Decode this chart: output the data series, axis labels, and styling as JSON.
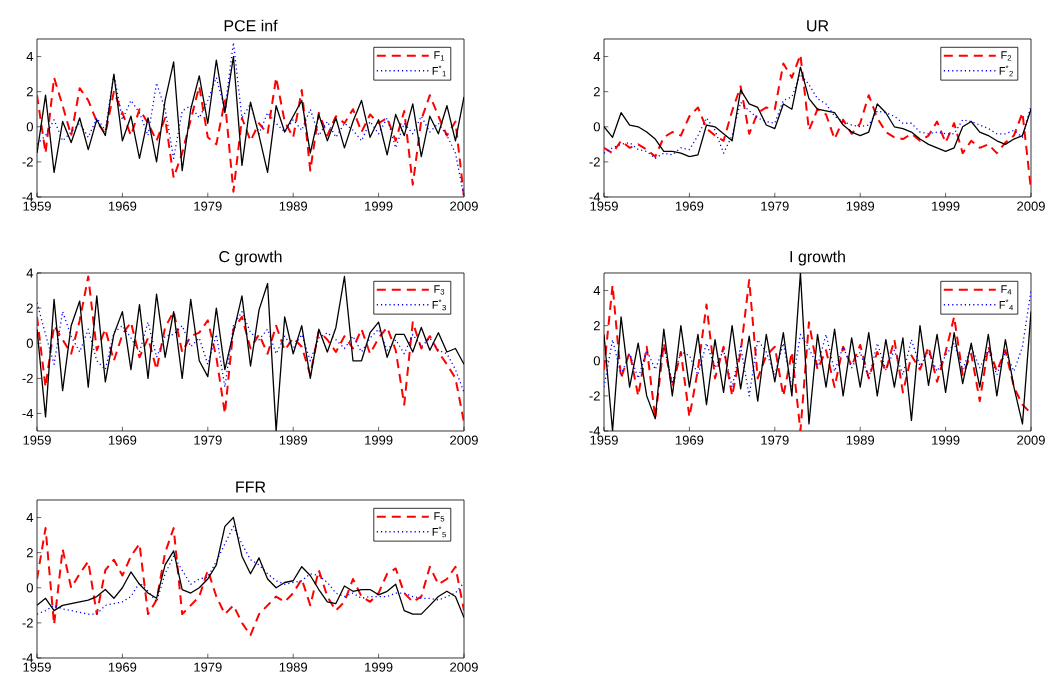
{
  "chart_data": [
    {
      "type": "line",
      "title": "PCE inf",
      "x": [
        1959,
        1960,
        1961,
        1962,
        1963,
        1964,
        1965,
        1966,
        1967,
        1968,
        1969,
        1970,
        1971,
        1972,
        1973,
        1974,
        1975,
        1976,
        1977,
        1978,
        1979,
        1980,
        1981,
        1982,
        1983,
        1984,
        1985,
        1986,
        1987,
        1988,
        1989,
        1990,
        1991,
        1992,
        1993,
        1994,
        1995,
        1996,
        1997,
        1998,
        1999,
        2000,
        2001,
        2002,
        2003,
        2004,
        2005,
        2006,
        2007,
        2008,
        2009
      ],
      "xlim": [
        1959,
        2009
      ],
      "xticks": [
        1959,
        1969,
        1979,
        1989,
        1999,
        2009
      ],
      "ylim": [
        -4,
        5
      ],
      "yticks": [
        -4,
        -2,
        0,
        2,
        4
      ],
      "legend": "top right",
      "series": [
        {
          "name": "F$_{1}$",
          "color": "#ff0000",
          "line_style": "dashed",
          "values": [
            1.8,
            -1.5,
            2.8,
            1.2,
            -0.5,
            2.2,
            1.5,
            0.3,
            -0.4,
            2.0,
            0.8,
            -0.5,
            1.0,
            0.2,
            -0.8,
            0.5,
            -2.9,
            -1.5,
            0.4,
            2.3,
            -0.6,
            -1.0,
            1.5,
            -3.7,
            0.5,
            -0.8,
            0.2,
            -0.4,
            2.8,
            0.3,
            -0.6,
            2.1,
            -2.5,
            0.8,
            -0.5,
            0.6,
            0.2,
            1.0,
            -0.3,
            0.7,
            0.2,
            0.5,
            -0.8,
            0.9,
            -3.3,
            0.4,
            1.8,
            0.6,
            -0.5,
            0.3,
            -4.0
          ]
        },
        {
          "name": "F$^{*}$$_{1}$",
          "color": "#0000ff",
          "line_style": "dotted",
          "values": [
            -1.0,
            -0.5,
            0.4,
            -0.8,
            -0.3,
            0.2,
            -0.6,
            0.5,
            -0.2,
            3.0,
            0.4,
            1.5,
            0.8,
            -0.5,
            2.5,
            1.0,
            -1.8,
            0.9,
            1.2,
            0.5,
            1.5,
            2.8,
            1.0,
            4.8,
            0.5,
            1.3,
            -0.4,
            0.8,
            0.2,
            -0.3,
            0.4,
            -0.2,
            1.0,
            -0.5,
            0.3,
            -0.6,
            0.2,
            -0.2,
            -0.8,
            0.3,
            -0.4,
            0.5,
            -1.2,
            0.2,
            -0.4,
            0.6,
            -0.3,
            0.2,
            -0.5,
            -1.5,
            -4.0
          ]
        },
        {
          "color": "#000000",
          "line_style": "solid",
          "values": [
            -1.5,
            1.8,
            -2.6,
            0.3,
            -0.9,
            0.5,
            -1.3,
            0.4,
            -0.5,
            3.0,
            -0.8,
            0.6,
            -1.8,
            0.5,
            -2.0,
            1.5,
            3.7,
            -2.5,
            1.0,
            2.9,
            0.2,
            3.8,
            0.8,
            4.0,
            -2.2,
            1.4,
            -0.5,
            -2.6,
            1.2,
            -0.3,
            0.6,
            1.5,
            -1.5,
            0.7,
            -0.8,
            0.5,
            -1.2,
            0.3,
            1.5,
            -0.6,
            0.4,
            -1.6,
            0.7,
            -0.5,
            1.3,
            -1.7,
            0.6,
            -0.4,
            1.2,
            -0.8,
            1.7
          ]
        }
      ]
    },
    {
      "type": "line",
      "title": "UR",
      "x": [
        1959,
        1960,
        1961,
        1962,
        1963,
        1964,
        1965,
        1966,
        1967,
        1968,
        1969,
        1970,
        1971,
        1972,
        1973,
        1974,
        1975,
        1976,
        1977,
        1978,
        1979,
        1980,
        1981,
        1982,
        1983,
        1984,
        1985,
        1986,
        1987,
        1988,
        1989,
        1990,
        1991,
        1992,
        1993,
        1994,
        1995,
        1996,
        1997,
        1998,
        1999,
        2000,
        2001,
        2002,
        2003,
        2004,
        2005,
        2006,
        2007,
        2008,
        2009
      ],
      "xlim": [
        1959,
        2009
      ],
      "xticks": [
        1959,
        1969,
        1979,
        1989,
        1999,
        2009
      ],
      "ylim": [
        -4,
        5
      ],
      "yticks": [
        -4,
        -2,
        0,
        2,
        4
      ],
      "legend": "top right",
      "series": [
        {
          "name": "F$_{2}$",
          "color": "#ff0000",
          "line_style": "dashed",
          "values": [
            -1.2,
            -1.5,
            -0.8,
            -1.2,
            -1.0,
            -1.3,
            -1.7,
            -0.6,
            -0.3,
            -0.5,
            0.6,
            1.1,
            -0.1,
            -0.5,
            -0.8,
            0.9,
            2.3,
            -0.4,
            0.8,
            1.1,
            1.0,
            3.6,
            2.8,
            4.1,
            -0.2,
            1.0,
            0.7,
            -0.7,
            0.4,
            -0.4,
            0.2,
            1.8,
            0.5,
            -0.3,
            -0.6,
            -0.7,
            -0.4,
            -0.8,
            -0.5,
            0.3,
            -0.9,
            0.2,
            -1.5,
            -0.8,
            -1.2,
            -1.0,
            -1.5,
            -0.9,
            -0.5,
            0.8,
            -3.6
          ]
        },
        {
          "name": "F$^{*}$$_{2}$",
          "color": "#0000ff",
          "line_style": "dotted",
          "values": [
            -1.5,
            -1.2,
            -1.0,
            -0.9,
            -1.3,
            -1.4,
            -1.8,
            -1.5,
            -1.6,
            -1.2,
            -1.3,
            -0.5,
            0.5,
            -0.2,
            -1.5,
            -0.5,
            1.4,
            0.9,
            0.5,
            0.3,
            0.2,
            1.5,
            1.7,
            3.0,
            2.4,
            1.6,
            1.3,
            0.6,
            0.3,
            0.1,
            0.0,
            0.1,
            0.9,
            0.8,
            0.6,
            0.2,
            0.2,
            -0.3,
            -0.4,
            -0.3,
            -0.4,
            -0.4,
            0.4,
            0.3,
            0.1,
            -0.1,
            -0.4,
            -0.4,
            -0.2,
            -0.6,
            1.2
          ]
        },
        {
          "color": "#000000",
          "line_style": "solid",
          "values": [
            0.0,
            -0.6,
            0.8,
            0.1,
            0.0,
            -0.3,
            -0.7,
            -1.4,
            -1.4,
            -1.5,
            -1.7,
            -1.6,
            0.1,
            0.0,
            -0.4,
            -0.8,
            2.1,
            1.3,
            1.1,
            0.1,
            -0.1,
            1.3,
            1.0,
            3.4,
            1.6,
            1.0,
            0.9,
            0.8,
            0.1,
            -0.3,
            -0.5,
            -0.3,
            1.3,
            0.8,
            0.0,
            -0.1,
            -0.3,
            -0.7,
            -1.0,
            -1.2,
            -1.4,
            -1.2,
            0.0,
            0.3,
            -0.3,
            -0.5,
            -0.8,
            -1.0,
            -0.7,
            -0.5,
            1.0
          ]
        }
      ]
    },
    {
      "type": "line",
      "title": "C growth",
      "x": [
        1959,
        1960,
        1961,
        1962,
        1963,
        1964,
        1965,
        1966,
        1967,
        1968,
        1969,
        1970,
        1971,
        1972,
        1973,
        1974,
        1975,
        1976,
        1977,
        1978,
        1979,
        1980,
        1981,
        1982,
        1983,
        1984,
        1985,
        1986,
        1987,
        1988,
        1989,
        1990,
        1991,
        1992,
        1993,
        1994,
        1995,
        1996,
        1997,
        1998,
        1999,
        2000,
        2001,
        2002,
        2003,
        2004,
        2005,
        2006,
        2007,
        2008,
        2009
      ],
      "xlim": [
        1959,
        2009
      ],
      "xticks": [
        1959,
        1969,
        1979,
        1989,
        1999,
        2009
      ],
      "ylim": [
        -5,
        4
      ],
      "yticks": [
        -4,
        -2,
        0,
        2,
        4
      ],
      "legend": "top right",
      "series": [
        {
          "name": "F$_{3}$",
          "color": "#ff0000",
          "line_style": "dashed",
          "values": [
            1.5,
            -2.5,
            1.0,
            0.2,
            -0.6,
            1.3,
            3.8,
            -0.4,
            0.8,
            -1.0,
            0.5,
            1.2,
            -0.8,
            0.3,
            -1.5,
            0.9,
            1.8,
            -0.5,
            0.4,
            0.6,
            1.3,
            -0.8,
            -4.0,
            0.8,
            1.5,
            -0.3,
            0.5,
            -0.6,
            1.0,
            -0.4,
            0.3,
            -0.2,
            -1.8,
            0.7,
            0.2,
            -0.5,
            0.4,
            -0.3,
            0.8,
            -0.6,
            0.3,
            0.9,
            -0.4,
            -3.5,
            1.2,
            -0.3,
            0.4,
            -0.5,
            -1.2,
            -2.0,
            -4.5
          ]
        },
        {
          "name": "F$^{*}$$_{3}$",
          "color": "#0000ff",
          "line_style": "dotted",
          "values": [
            2.3,
            0.5,
            -1.2,
            1.8,
            0.4,
            -0.5,
            0.8,
            -1.0,
            -1.5,
            0.6,
            1.0,
            0.3,
            -0.5,
            1.2,
            -0.8,
            0.4,
            0.5,
            1.0,
            -0.2,
            0.3,
            -1.2,
            0.5,
            -2.5,
            1.0,
            1.8,
            0.6,
            0.2,
            0.8,
            -0.6,
            0.4,
            -0.3,
            0.5,
            -1.0,
            0.3,
            0.6,
            0.2,
            -0.3,
            0.4,
            -0.5,
            0.3,
            0.8,
            -0.4,
            0.2,
            -0.6,
            0.5,
            -0.2,
            0.3,
            -0.4,
            -0.6,
            -1.5,
            -2.8
          ]
        },
        {
          "color": "#000000",
          "line_style": "solid",
          "values": [
            0.8,
            -4.2,
            2.5,
            -2.7,
            1.0,
            2.4,
            -2.5,
            2.7,
            -2.2,
            0.5,
            1.8,
            -1.5,
            2.2,
            -2.0,
            2.8,
            -0.8,
            1.8,
            -2.0,
            2.5,
            -1.0,
            -1.9,
            2.0,
            -1.5,
            0.6,
            2.7,
            -1.3,
            1.9,
            3.4,
            -5.0,
            1.5,
            -0.6,
            1.0,
            -2.0,
            0.8,
            -0.5,
            0.9,
            3.8,
            -1.0,
            -1.0,
            0.6,
            1.2,
            -0.8,
            0.5,
            0.5,
            -0.5,
            0.9,
            -0.4,
            0.6,
            -0.5,
            -0.3,
            -1.2
          ]
        }
      ]
    },
    {
      "type": "line",
      "title": "I growth",
      "x": [
        1959,
        1960,
        1961,
        1962,
        1963,
        1964,
        1965,
        1966,
        1967,
        1968,
        1969,
        1970,
        1971,
        1972,
        1973,
        1974,
        1975,
        1976,
        1977,
        1978,
        1979,
        1980,
        1981,
        1982,
        1983,
        1984,
        1985,
        1986,
        1987,
        1988,
        1989,
        1990,
        1991,
        1992,
        1993,
        1994,
        1995,
        1996,
        1997,
        1998,
        1999,
        2000,
        2001,
        2002,
        2003,
        2004,
        2005,
        2006,
        2007,
        2008,
        2009
      ],
      "xlim": [
        1959,
        2009
      ],
      "xticks": [
        1959,
        1969,
        1979,
        1989,
        1999,
        2009
      ],
      "ylim": [
        -4,
        5
      ],
      "yticks": [
        -4,
        -2,
        0,
        2,
        4
      ],
      "legend": "top right",
      "series": [
        {
          "name": "F$_{4}$",
          "color": "#ff0000",
          "line_style": "dashed",
          "values": [
            -0.5,
            4.3,
            -1.0,
            0.5,
            -2.0,
            0.8,
            -3.3,
            1.0,
            -1.5,
            0.5,
            -3.2,
            -0.5,
            3.2,
            -1.0,
            0.8,
            -2.0,
            0.5,
            4.6,
            -1.0,
            0.3,
            0.8,
            -2.0,
            0.5,
            -4.0,
            2.2,
            -0.5,
            0.6,
            -1.5,
            0.8,
            -0.3,
            0.9,
            -1.0,
            0.5,
            -0.6,
            1.2,
            -1.8,
            0.3,
            -0.5,
            0.8,
            -1.2,
            0.5,
            2.5,
            -0.8,
            0.4,
            -2.3,
            0.8,
            -0.6,
            0.6,
            -1.5,
            -2.5,
            -3.0
          ]
        },
        {
          "name": "F$^{*}$$_{4}$",
          "color": "#0000ff",
          "line_style": "dotted",
          "values": [
            -1.5,
            1.2,
            -0.8,
            0.4,
            -1.0,
            0.6,
            -0.5,
            0.8,
            -1.2,
            0.5,
            0.3,
            -0.8,
            1.0,
            -0.4,
            0.6,
            -1.5,
            0.8,
            -2.0,
            1.2,
            0.5,
            -0.8,
            1.0,
            -1.5,
            1.5,
            0.7,
            -0.3,
            1.5,
            -0.6,
            0.8,
            -0.4,
            0.5,
            -1.0,
            1.0,
            -0.5,
            0.6,
            -0.8,
            1.2,
            -0.3,
            0.5,
            -0.6,
            0.3,
            1.0,
            -0.5,
            0.8,
            -0.4,
            0.6,
            -0.8,
            0.5,
            -0.6,
            0.8,
            4.0
          ]
        },
        {
          "color": "#000000",
          "line_style": "solid",
          "values": [
            1.5,
            -4.0,
            2.5,
            -1.5,
            1.0,
            -2.0,
            -3.3,
            1.8,
            -2.0,
            2.0,
            -1.5,
            1.5,
            -2.5,
            1.2,
            -1.8,
            2.0,
            -1.6,
            1.4,
            -2.3,
            1.5,
            -1.2,
            1.6,
            -2.0,
            5.0,
            -3.6,
            1.5,
            -1.5,
            1.8,
            -2.0,
            1.3,
            -1.5,
            1.6,
            -2.0,
            1.2,
            -1.5,
            1.3,
            -3.4,
            2.0,
            -1.4,
            1.5,
            -1.8,
            1.6,
            -1.3,
            1.0,
            -1.5,
            1.5,
            -2.0,
            1.2,
            -1.5,
            -3.6,
            2.8
          ]
        }
      ]
    },
    {
      "type": "line",
      "title": "FFR",
      "x": [
        1959,
        1960,
        1961,
        1962,
        1963,
        1964,
        1965,
        1966,
        1967,
        1968,
        1969,
        1970,
        1971,
        1972,
        1973,
        1974,
        1975,
        1976,
        1977,
        1978,
        1979,
        1980,
        1981,
        1982,
        1983,
        1984,
        1985,
        1986,
        1987,
        1988,
        1989,
        1990,
        1991,
        1992,
        1993,
        1994,
        1995,
        1996,
        1997,
        1998,
        1999,
        2000,
        2001,
        2002,
        2003,
        2004,
        2005,
        2006,
        2007,
        2008,
        2009
      ],
      "xlim": [
        1959,
        2009
      ],
      "xticks": [
        1959,
        1969,
        1979,
        1989,
        1999,
        2009
      ],
      "ylim": [
        -4,
        5
      ],
      "yticks": [
        -4,
        -2,
        0,
        2,
        4
      ],
      "legend": "top right",
      "series": [
        {
          "name": "F$_{5}$",
          "color": "#ff0000",
          "line_style": "dashed",
          "values": [
            0.5,
            3.4,
            -2.1,
            2.2,
            0.0,
            0.8,
            1.5,
            -1.5,
            1.0,
            1.6,
            0.7,
            1.8,
            2.5,
            -1.5,
            -0.7,
            2.0,
            3.4,
            -1.5,
            -1.0,
            -0.5,
            1.0,
            -0.5,
            -1.5,
            -1.0,
            -2.0,
            -2.7,
            -1.5,
            -1.0,
            -0.5,
            -0.8,
            -0.3,
            0.5,
            -1.0,
            1.0,
            -0.5,
            -1.3,
            -0.8,
            0.5,
            -0.5,
            -0.8,
            -0.3,
            0.8,
            1.1,
            -0.3,
            -0.8,
            -0.5,
            1.2,
            0.2,
            0.5,
            1.2,
            -1.3
          ]
        },
        {
          "name": "F$^{*}$$_{5}$",
          "color": "#0000ff",
          "line_style": "dotted",
          "values": [
            -1.5,
            -1.3,
            -1.0,
            -1.2,
            -1.3,
            -1.4,
            -1.5,
            -1.5,
            -1.0,
            -0.9,
            -0.8,
            -0.5,
            0.3,
            -0.2,
            -0.8,
            0.8,
            1.8,
            1.0,
            0.2,
            0.5,
            0.6,
            1.5,
            2.5,
            3.5,
            2.5,
            1.6,
            1.3,
            0.8,
            0.4,
            0.2,
            0.3,
            0.4,
            0.8,
            0.7,
            0.3,
            -0.3,
            -0.5,
            -0.3,
            -0.6,
            -0.5,
            -0.5,
            -0.5,
            -0.3,
            -0.3,
            -0.5,
            -0.6,
            -0.6,
            -0.7,
            -0.5,
            -0.3,
            0.3
          ]
        },
        {
          "color": "#000000",
          "line_style": "solid",
          "values": [
            -1.0,
            -0.6,
            -1.3,
            -1.0,
            -0.9,
            -0.8,
            -0.7,
            -0.5,
            -0.1,
            -0.6,
            0.0,
            0.9,
            0.2,
            -0.3,
            -0.6,
            1.3,
            2.1,
            -0.1,
            -0.3,
            0.0,
            0.5,
            1.3,
            3.5,
            4.0,
            1.8,
            0.8,
            1.7,
            0.5,
            0.0,
            0.3,
            0.4,
            1.2,
            0.7,
            -0.1,
            -0.8,
            -0.9,
            0.1,
            -0.2,
            -0.1,
            -0.1,
            -0.4,
            -0.2,
            0.2,
            -1.3,
            -1.5,
            -1.5,
            -1.0,
            -0.5,
            -0.2,
            -0.5,
            -1.7
          ]
        }
      ]
    }
  ]
}
